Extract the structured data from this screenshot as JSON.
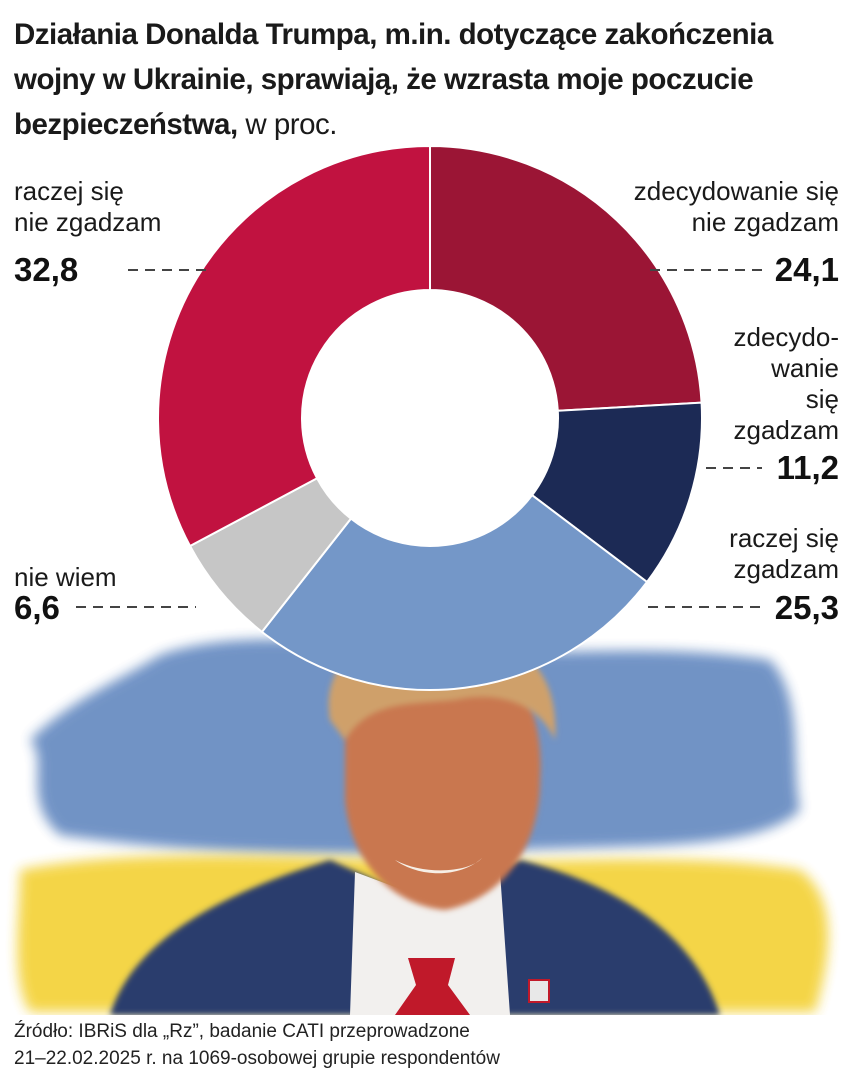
{
  "title": {
    "bold": "Działania Donalda Trumpa, m.in. dotyczące zakończenia wojny w Ukrainie, sprawiają, że wzrasta moje poczucie bezpieczeństwa,",
    "unit": "w proc."
  },
  "chart_data": {
    "type": "pie",
    "variant": "donut",
    "slices": [
      {
        "label": "zdecydowanie się nie zgadzam",
        "value": 24.1,
        "value_text": "24,1",
        "color": "#9b1535"
      },
      {
        "label": "zdecydowanie się zgadzam",
        "value": 11.2,
        "value_text": "11,2",
        "color": "#1c2a55"
      },
      {
        "label": "raczej się zgadzam",
        "value": 25.3,
        "value_text": "25,3",
        "color": "#7497c8"
      },
      {
        "label": "nie wiem",
        "value": 6.6,
        "value_text": "6,6",
        "color": "#c6c6c6"
      },
      {
        "label": "raczej się nie zgadzam",
        "value": 32.8,
        "value_text": "32,8",
        "color": "#c11240"
      }
    ],
    "start": "top",
    "direction": "clockwise"
  },
  "labels": {
    "l0": [
      "zdecydowanie się",
      "nie zgadzam"
    ],
    "l1": [
      "zdecydo-",
      "wanie",
      "się",
      "zgadzam"
    ],
    "l2": [
      "raczej się",
      "zgadzam"
    ],
    "l3": [
      "nie wiem"
    ],
    "l4": [
      "raczej się",
      "nie zgadzam"
    ]
  },
  "source": {
    "line1": "Źródło: IBRiS dla „Rz”, badanie CATI przeprowadzone",
    "line2": "21–22.02.2025 r. na 1069-osobowej grupie respondentów"
  },
  "illustration": "watercolor-portrait-over-ukrainian-flag"
}
